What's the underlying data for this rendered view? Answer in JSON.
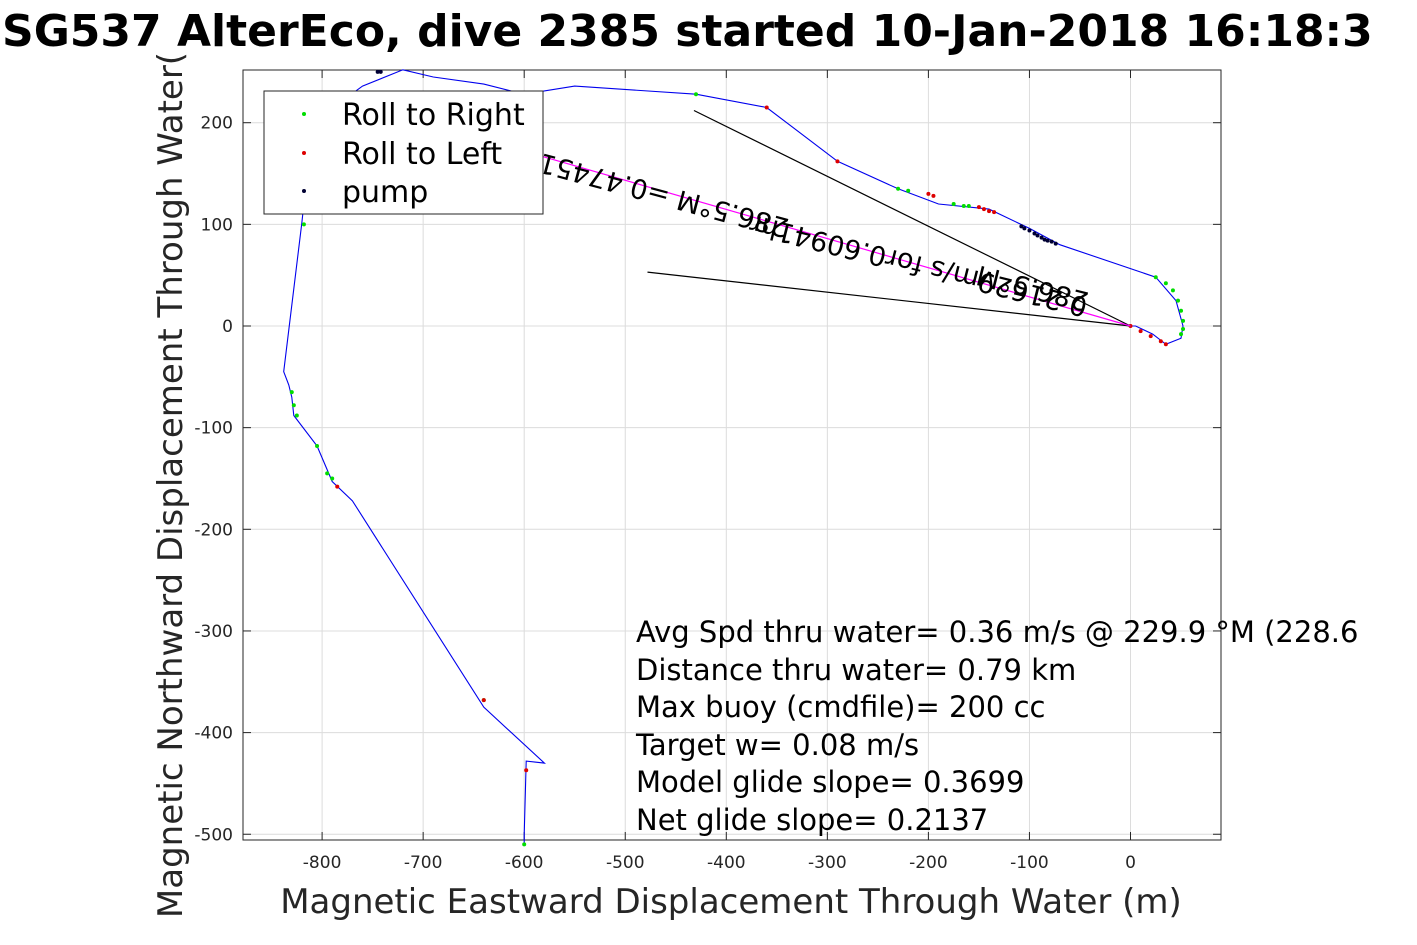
{
  "chart_data": {
    "type": "line",
    "title": "SG537 AlterEco, dive 2385 started 10-Jan-2018 16:18:3",
    "xlabel": "Magnetic Eastward Displacement Through Water (m)",
    "ylabel": "Magnetic Northward Displacement Through Water(",
    "xlim": [
      -870,
      90
    ],
    "ylim": [
      -510,
      250
    ],
    "xticks": [
      -800,
      -700,
      -600,
      -500,
      -400,
      -300,
      -200,
      -100,
      0
    ],
    "yticks": [
      200,
      100,
      0,
      -100,
      -200,
      -300,
      -400,
      -500
    ],
    "grid": true,
    "legend_position": "top-left",
    "legend": [
      {
        "name": "Roll to Right",
        "color": "#00dd00"
      },
      {
        "name": "Roll to Left",
        "color": "#dd0000"
      },
      {
        "name": "pump",
        "color": "#000033"
      }
    ],
    "track": {
      "color": "#0000ee",
      "x": [
        -600,
        -600,
        -598,
        -580,
        -640,
        -770,
        -790,
        -805,
        -828,
        -830,
        -833,
        -838,
        -820,
        -815,
        -812,
        -760,
        -720,
        -690,
        -640,
        -600,
        -550,
        -430,
        -360,
        -290,
        -230,
        -190,
        -140,
        -100,
        -70,
        25,
        45,
        52,
        50,
        35,
        22,
        5,
        0
      ],
      "y": [
        -510,
        -500,
        -428,
        -430,
        -375,
        -172,
        -153,
        -118,
        -88,
        -70,
        -58,
        -45,
        102,
        148,
        198,
        236,
        252,
        245,
        238,
        228,
        236,
        228,
        215,
        162,
        135,
        120,
        115,
        96,
        80,
        48,
        25,
        0,
        -12,
        -18,
        -8,
        0,
        0
      ]
    },
    "roll_right_points": {
      "x": [
        -600,
        -640,
        -790,
        -795,
        -805,
        -825,
        -828,
        -830,
        -818,
        -815,
        -430,
        -230,
        -220,
        -175,
        -165,
        -160,
        25,
        35,
        42,
        47,
        50,
        52,
        52,
        50
      ],
      "y": [
        -510,
        -368,
        -150,
        -145,
        -118,
        -88,
        -78,
        -65,
        100,
        120,
        228,
        135,
        133,
        120,
        118,
        118,
        48,
        42,
        35,
        25,
        15,
        5,
        -3,
        -8
      ],
      "color": "#00dd00"
    },
    "roll_left_points": {
      "x": [
        -598,
        -640,
        -785,
        -360,
        -290,
        -200,
        -195,
        -150,
        -145,
        -140,
        -135,
        35,
        30,
        20,
        10,
        0
      ],
      "y": [
        -437,
        -368,
        -158,
        215,
        162,
        130,
        128,
        117,
        115,
        113,
        112,
        -18,
        -15,
        -10,
        -5,
        0
      ],
      "color": "#dd0000"
    },
    "pump_points": {
      "x": [
        -745,
        -742,
        -108,
        -105,
        -100,
        -95,
        -92,
        -88,
        -85,
        -82,
        -78,
        -74
      ],
      "y": [
        250,
        250,
        98,
        96,
        94,
        91,
        89,
        87,
        85,
        84,
        83,
        81
      ],
      "color": "#000033"
    },
    "current_lines": [
      {
        "x": [
          -432,
          0
        ],
        "y": [
          212,
          0
        ],
        "color": "#000000"
      },
      {
        "x": [
          -478,
          0
        ],
        "y": [
          53,
          0
        ],
        "color": "#000000"
      },
      {
        "x": [
          -600,
          0
        ],
        "y": [
          172,
          0
        ],
        "color": "#ff00ff"
      }
    ],
    "annotations": {
      "rotated_upper": "286.5°M =0.47451",
      "rotated_lower_1": "0.21629m/s for0.60941hr",
      "rotated_lower_2": "286.5°M"
    },
    "info_lines": [
      "Avg Spd thru water=  0.36 m/s @ 229.9 °M (228.6",
      "Distance thru water=  0.79 km",
      "Max buoy (cmdfile)= 200 cc",
      "Target w= 0.08 m/s",
      "Model glide slope= 0.3699",
      "Net glide slope= 0.2137"
    ]
  }
}
